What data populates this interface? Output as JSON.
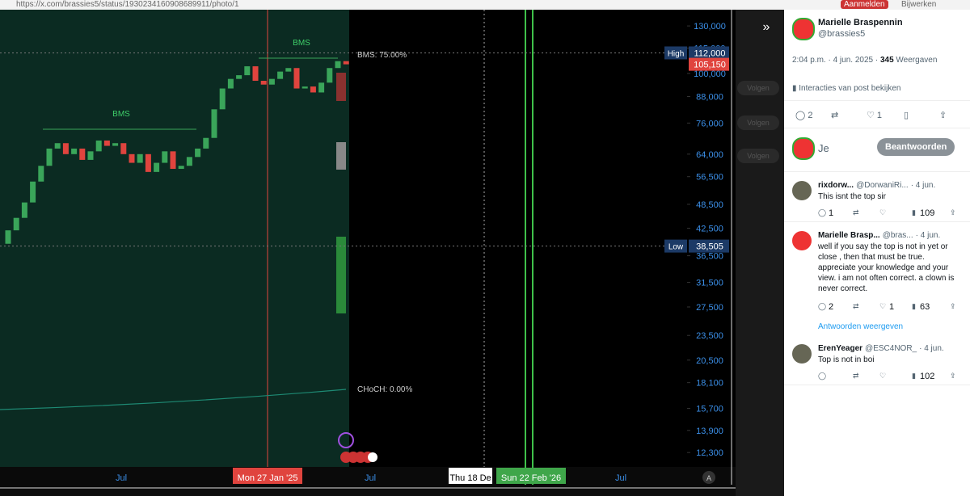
{
  "browser": {
    "url": "https://x.com/brassies5/status/1930234160908689911/photo/1",
    "sign_in": "Aanmelden",
    "update": "Bijwerken"
  },
  "chart_data": {
    "type": "candlestick",
    "log_scale": true,
    "up_color": "#3aa55a",
    "down_color": "#e0443e",
    "ylim": [
      11360,
      142200
    ],
    "yticks": [
      {
        "value": 130000,
        "label": "130,000"
      },
      {
        "value": 115000,
        "label": "115,000"
      },
      {
        "value": 100000,
        "label": "100,000"
      },
      {
        "value": 88000,
        "label": "88,000"
      },
      {
        "value": 76000,
        "label": "76,000"
      },
      {
        "value": 64000,
        "label": "64,000"
      },
      {
        "value": 56500,
        "label": "56,500"
      },
      {
        "value": 48500,
        "label": "48,500"
      },
      {
        "value": 42500,
        "label": "42,500"
      },
      {
        "value": 36500,
        "label": "36,500"
      },
      {
        "value": 31500,
        "label": "31,500"
      },
      {
        "value": 27500,
        "label": "27,500"
      },
      {
        "value": 23500,
        "label": "23,500"
      },
      {
        "value": 20500,
        "label": "20,500"
      },
      {
        "value": 18100,
        "label": "18,100"
      },
      {
        "value": 15700,
        "label": "15,700"
      },
      {
        "value": 13900,
        "label": "13,900"
      },
      {
        "value": 12300,
        "label": "12,300"
      }
    ],
    "x_labels": [
      "Jul",
      "Mon 27 Jan '25",
      "Jul",
      "Thu 18 De",
      "Sun 22 Feb '26",
      "Jul"
    ],
    "open": [
      39000,
      42000,
      45000,
      49000,
      55000,
      60000,
      66000,
      68000,
      64000,
      66000,
      62000,
      65000,
      69000,
      67000,
      68000,
      64000,
      61000,
      64000,
      58000,
      61000,
      65000,
      59000,
      60000,
      63000,
      66000,
      70000,
      82000,
      92000,
      97000,
      99000,
      104000,
      96000,
      94000,
      97000,
      101000,
      103000,
      92000,
      93000,
      90000,
      95000,
      103000,
      107000
    ],
    "high": {
      "value": 112000,
      "label": "112,000"
    },
    "low": {
      "value": 38505,
      "label": "38,505"
    },
    "close": [
      42000,
      45000,
      49000,
      55000,
      60000,
      66000,
      68000,
      64000,
      66000,
      62000,
      65000,
      69000,
      67000,
      68000,
      64000,
      61000,
      64000,
      58000,
      61000,
      65000,
      59000,
      60000,
      63000,
      66000,
      70000,
      82000,
      92000,
      97000,
      99000,
      104000,
      96000,
      94000,
      97000,
      101000,
      103000,
      92000,
      93000,
      90000,
      95000,
      103000,
      107000,
      105150
    ],
    "bms_labels": [
      "BMS",
      "BMS"
    ],
    "bms_text": "BMS: 75.00%",
    "choch_text": "CHoCH: 0.00%",
    "high_name": "High",
    "low_name": "Low",
    "current": {
      "value": 105150,
      "label": "105,150"
    },
    "auto": "A"
  },
  "follow": [
    "Volgen",
    "Volgen",
    "Volgen"
  ],
  "tweet": {
    "name": "Marielle Braspennin",
    "handle": "@brassies5",
    "time": "2:04 p.m. · 4 jun. 2025 · ",
    "views": "345",
    "views_label": " Weergaven",
    "interactions": "Interacties van post bekijken",
    "replies": "2",
    "likes": "1",
    "you": "Je",
    "reply_button": "Beantwoorden"
  },
  "replies": [
    {
      "name": "rixdorw...",
      "handle": "@DorwaniRi...",
      "date": "· 4 jun.",
      "text": "This isnt the top sir",
      "replies": "1",
      "likes": "",
      "views": "109"
    },
    {
      "name": "Marielle Brasp...",
      "handle": "@bras...",
      "date": "· 4 jun.",
      "text": "well if you say the top is not in yet or close , then that must be true. appreciate your knowledge  and your view. i am not often correct. a clown is never correct.",
      "replies": "2",
      "likes": "1",
      "views": "63"
    },
    {
      "name": "ErenYeager",
      "handle": "@ESC4NOR_",
      "date": "· 4 jun.",
      "text": "Top is not in boi",
      "replies": "",
      "likes": "",
      "views": "102"
    }
  ],
  "show_replies": "Antwoorden weergeven"
}
